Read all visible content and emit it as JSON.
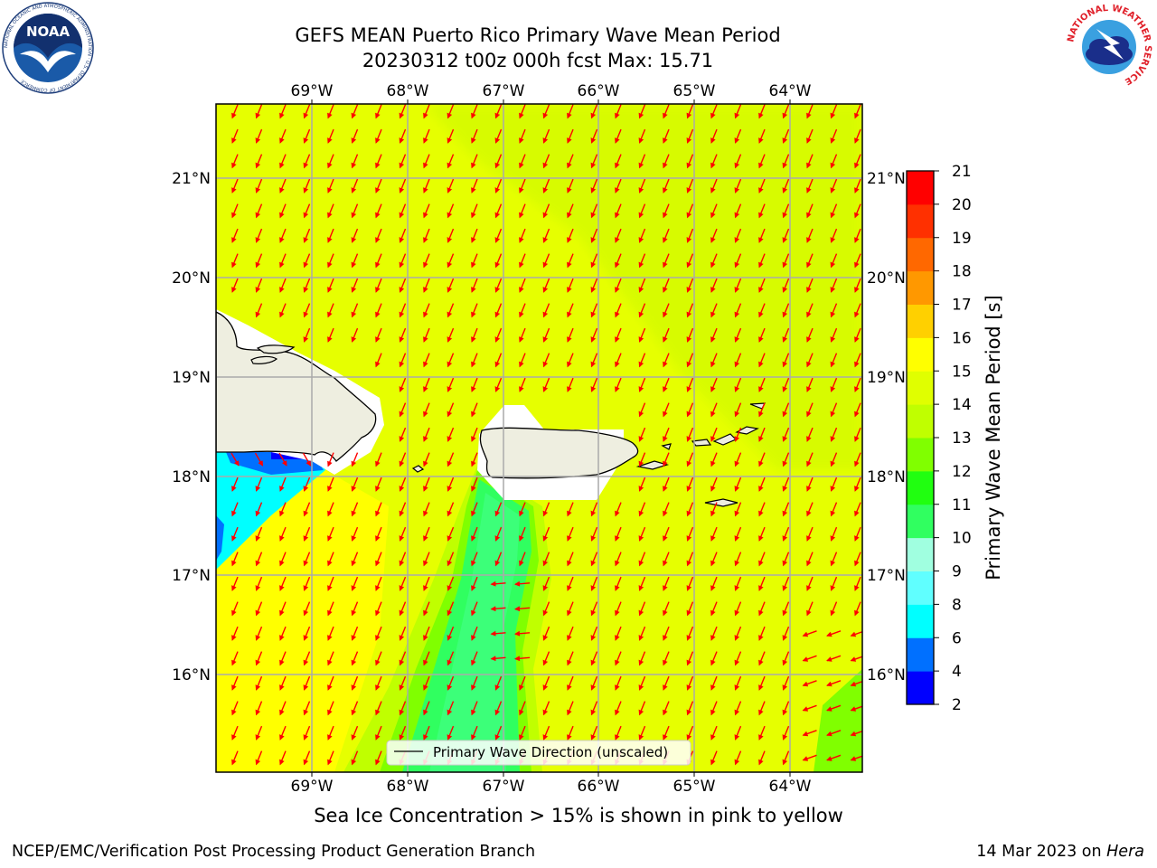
{
  "header": {
    "title": "GEFS MEAN Puerto Rico Primary Wave Mean Period",
    "subtitle": "20230312 t00z 000h fcst   Max: 15.71"
  },
  "map": {
    "lon_labels": [
      "69°W",
      "68°W",
      "67°W",
      "66°W",
      "65°W",
      "64°W"
    ],
    "lat_labels": [
      "21°N",
      "20°N",
      "19°N",
      "18°N",
      "17°N",
      "16°N"
    ],
    "legend_label": "Primary Wave Direction (unscaled)",
    "arrow_color": "#ff0000",
    "land_color": "#eeeee0"
  },
  "colorbar": {
    "label": "Primary Wave Mean Period [s]",
    "ticks": [
      "2",
      "4",
      "6",
      "8",
      "9",
      "10",
      "11",
      "12",
      "13",
      "14",
      "15",
      "16",
      "17",
      "18",
      "19",
      "20",
      "21"
    ],
    "colors": [
      "#0000ff",
      "#0070ff",
      "#00ffff",
      "#60ffff",
      "#a0ffe0",
      "#30ff60",
      "#20ff10",
      "#80ff00",
      "#c0ff00",
      "#e0ff00",
      "#ffff00",
      "#ffd000",
      "#ff9800",
      "#ff6800",
      "#ff3000",
      "#ff0000"
    ]
  },
  "note": "Sea Ice Concentration > 15% is shown in pink to yellow",
  "footer": {
    "left": "NCEP/EMC/Verification Post Processing Product Generation Branch",
    "right_prefix": "14 Mar 2023 on ",
    "right_host": "Hera"
  },
  "logos": {
    "noaa_text": "NOAA",
    "noaa_ring": "NATIONAL OCEANIC AND ATMOSPHERIC ADMINISTRATION · U.S. DEPARTMENT OF COMMERCE",
    "nws_ring": "NATIONAL WEATHER SERVICE"
  }
}
